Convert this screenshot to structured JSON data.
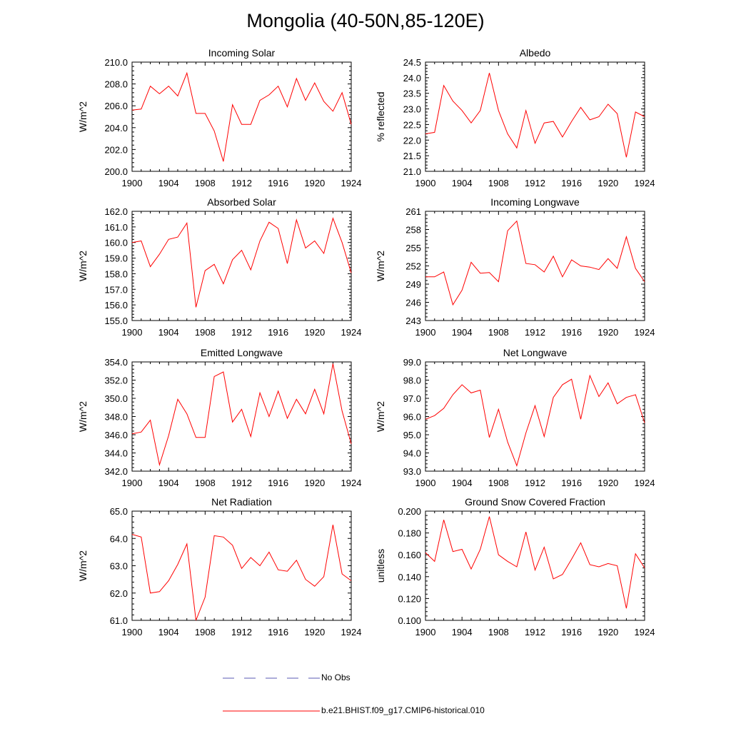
{
  "figure": {
    "title": "Mongolia (40-50N,85-120E)"
  },
  "legend": {
    "items": [
      {
        "label": "No Obs",
        "style": "dashed",
        "color": "#5a5ab4"
      },
      {
        "label": "b.e21.BHIST.f09_g17.CMIP6-historical.010",
        "style": "solid",
        "color": "#ff0000"
      }
    ]
  },
  "chart_data": [
    {
      "type": "line",
      "title": "Incoming Solar",
      "xlabel": "",
      "ylabel": "W/m^2",
      "xlim": [
        1900,
        1924
      ],
      "ylim": [
        200,
        210
      ],
      "xticks": [
        "1900",
        "1904",
        "1908",
        "1912",
        "1916",
        "1920",
        "1924"
      ],
      "yticks": [
        "200.0",
        "202.0",
        "204.0",
        "206.0",
        "208.0",
        "210.0"
      ],
      "line_color": "#ff0000",
      "series": [
        {
          "x": [
            1900,
            1901,
            1902,
            1903,
            1904,
            1905,
            1906,
            1907,
            1908,
            1909,
            1910,
            1911,
            1912,
            1913,
            1914,
            1915,
            1916,
            1917,
            1918,
            1919,
            1920,
            1921,
            1922,
            1923,
            1924
          ],
          "values": [
            205.6,
            205.7,
            207.8,
            207.1,
            207.8,
            206.9,
            209.0,
            205.3,
            205.3,
            203.7,
            200.9,
            206.1,
            204.3,
            204.3,
            206.5,
            207.0,
            207.8,
            205.9,
            208.5,
            206.5,
            208.1,
            206.4,
            205.5,
            207.2,
            204.3
          ]
        }
      ]
    },
    {
      "type": "line",
      "title": "Albedo",
      "xlabel": "",
      "ylabel": "% reflected",
      "xlim": [
        1900,
        1924
      ],
      "ylim": [
        21,
        24.5
      ],
      "xticks": [
        "1900",
        "1904",
        "1908",
        "1912",
        "1916",
        "1920",
        "1924"
      ],
      "yticks": [
        "21.0",
        "21.5",
        "22.0",
        "22.5",
        "23.0",
        "23.5",
        "24.0",
        "24.5"
      ],
      "line_color": "#ff0000",
      "series": [
        {
          "x": [
            1900,
            1901,
            1902,
            1903,
            1904,
            1905,
            1906,
            1907,
            1908,
            1909,
            1910,
            1911,
            1912,
            1913,
            1914,
            1915,
            1916,
            1917,
            1918,
            1919,
            1920,
            1921,
            1922,
            1923,
            1924
          ],
          "values": [
            22.2,
            22.25,
            23.75,
            23.25,
            22.95,
            22.55,
            22.95,
            24.15,
            22.95,
            22.2,
            21.75,
            22.95,
            21.9,
            22.55,
            22.6,
            22.1,
            22.6,
            23.05,
            22.65,
            22.75,
            23.15,
            22.85,
            21.45,
            22.9,
            22.75
          ]
        }
      ]
    },
    {
      "type": "line",
      "title": "Absorbed Solar",
      "xlabel": "",
      "ylabel": "W/m^2",
      "xlim": [
        1900,
        1924
      ],
      "ylim": [
        155,
        162
      ],
      "xticks": [
        "1900",
        "1904",
        "1908",
        "1912",
        "1916",
        "1920",
        "1924"
      ],
      "yticks": [
        "155.0",
        "156.0",
        "157.0",
        "158.0",
        "159.0",
        "160.0",
        "161.0",
        "162.0"
      ],
      "line_color": "#ff0000",
      "series": [
        {
          "x": [
            1900,
            1901,
            1902,
            1903,
            1904,
            1905,
            1906,
            1907,
            1908,
            1909,
            1910,
            1911,
            1912,
            1913,
            1914,
            1915,
            1916,
            1917,
            1918,
            1919,
            1920,
            1921,
            1922,
            1923,
            1924
          ],
          "values": [
            160.0,
            160.1,
            158.45,
            159.25,
            160.2,
            160.35,
            161.25,
            155.85,
            158.2,
            158.6,
            157.35,
            158.9,
            159.5,
            158.25,
            160.1,
            161.3,
            160.9,
            158.65,
            161.45,
            159.65,
            160.1,
            159.3,
            161.55,
            160.0,
            158.05
          ]
        }
      ]
    },
    {
      "type": "line",
      "title": "Incoming Longwave",
      "xlabel": "",
      "ylabel": "W/m^2",
      "xlim": [
        1900,
        1924
      ],
      "ylim": [
        243,
        261
      ],
      "xticks": [
        "1900",
        "1904",
        "1908",
        "1912",
        "1916",
        "1920",
        "1924"
      ],
      "yticks": [
        "243",
        "246",
        "249",
        "252",
        "255",
        "258",
        "261"
      ],
      "line_color": "#ff0000",
      "series": [
        {
          "x": [
            1900,
            1901,
            1902,
            1903,
            1904,
            1905,
            1906,
            1907,
            1908,
            1909,
            1910,
            1911,
            1912,
            1913,
            1914,
            1915,
            1916,
            1917,
            1918,
            1919,
            1920,
            1921,
            1922,
            1923,
            1924
          ],
          "values": [
            250.2,
            250.2,
            251.0,
            245.6,
            248.0,
            252.6,
            250.8,
            250.9,
            249.4,
            257.8,
            259.4,
            252.4,
            252.2,
            251.0,
            253.6,
            250.2,
            253.0,
            252.0,
            251.8,
            251.4,
            253.2,
            251.6,
            256.8,
            251.6,
            249.4
          ]
        }
      ]
    },
    {
      "type": "line",
      "title": "Emitted Longwave",
      "xlabel": "",
      "ylabel": "W/m^2",
      "xlim": [
        1900,
        1924
      ],
      "ylim": [
        342,
        354
      ],
      "xticks": [
        "1900",
        "1904",
        "1908",
        "1912",
        "1916",
        "1920",
        "1924"
      ],
      "yticks": [
        "342.0",
        "344.0",
        "346.0",
        "348.0",
        "350.0",
        "352.0",
        "354.0"
      ],
      "line_color": "#ff0000",
      "series": [
        {
          "x": [
            1900,
            1901,
            1902,
            1903,
            1904,
            1905,
            1906,
            1907,
            1908,
            1909,
            1910,
            1911,
            1912,
            1913,
            1914,
            1915,
            1916,
            1917,
            1918,
            1919,
            1920,
            1921,
            1922,
            1923,
            1924
          ],
          "values": [
            346.1,
            346.3,
            347.6,
            342.7,
            345.9,
            349.9,
            348.3,
            345.7,
            345.7,
            352.4,
            352.9,
            347.4,
            348.8,
            345.8,
            350.6,
            348.0,
            350.8,
            347.8,
            349.9,
            348.3,
            351.0,
            348.3,
            353.8,
            348.6,
            345.0
          ]
        }
      ]
    },
    {
      "type": "line",
      "title": "Net Longwave",
      "xlabel": "",
      "ylabel": "W/m^2",
      "xlim": [
        1900,
        1924
      ],
      "ylim": [
        93,
        99
      ],
      "xticks": [
        "1900",
        "1904",
        "1908",
        "1912",
        "1916",
        "1920",
        "1924"
      ],
      "yticks": [
        "93.0",
        "94.0",
        "95.0",
        "96.0",
        "97.0",
        "98.0",
        "99.0"
      ],
      "line_color": "#ff0000",
      "series": [
        {
          "x": [
            1900,
            1901,
            1902,
            1903,
            1904,
            1905,
            1906,
            1907,
            1908,
            1909,
            1910,
            1911,
            1912,
            1913,
            1914,
            1915,
            1916,
            1917,
            1918,
            1919,
            1920,
            1921,
            1922,
            1923,
            1924
          ],
          "values": [
            95.85,
            96.05,
            96.45,
            97.2,
            97.75,
            97.3,
            97.45,
            94.85,
            96.4,
            94.6,
            93.3,
            95.1,
            96.6,
            94.9,
            97.05,
            97.75,
            98.05,
            95.85,
            98.25,
            97.1,
            97.85,
            96.7,
            97.05,
            97.2,
            95.65
          ]
        }
      ]
    },
    {
      "type": "line",
      "title": "Net Radiation",
      "xlabel": "",
      "ylabel": "W/m^2",
      "xlim": [
        1900,
        1924
      ],
      "ylim": [
        61,
        65
      ],
      "xticks": [
        "1900",
        "1904",
        "1908",
        "1912",
        "1916",
        "1920",
        "1924"
      ],
      "yticks": [
        "61.0",
        "62.0",
        "63.0",
        "64.0",
        "65.0"
      ],
      "line_color": "#ff0000",
      "series": [
        {
          "x": [
            1900,
            1901,
            1902,
            1903,
            1904,
            1905,
            1906,
            1907,
            1908,
            1909,
            1910,
            1911,
            1912,
            1913,
            1914,
            1915,
            1916,
            1917,
            1918,
            1919,
            1920,
            1921,
            1922,
            1923,
            1924
          ],
          "values": [
            64.15,
            64.05,
            62.0,
            62.05,
            62.45,
            63.05,
            63.8,
            61.0,
            61.85,
            64.1,
            64.05,
            63.75,
            62.9,
            63.3,
            63.0,
            63.5,
            62.85,
            62.8,
            63.2,
            62.5,
            62.25,
            62.6,
            64.5,
            62.7,
            62.45
          ]
        }
      ]
    },
    {
      "type": "line",
      "title": "Ground Snow Covered Fraction",
      "xlabel": "",
      "ylabel": "unitless",
      "xlim": [
        1900,
        1924
      ],
      "ylim": [
        0.1,
        0.2
      ],
      "xticks": [
        "1900",
        "1904",
        "1908",
        "1912",
        "1916",
        "1920",
        "1924"
      ],
      "yticks": [
        "0.100",
        "0.120",
        "0.140",
        "0.160",
        "0.180",
        "0.200"
      ],
      "line_color": "#ff0000",
      "series": [
        {
          "x": [
            1900,
            1901,
            1902,
            1903,
            1904,
            1905,
            1906,
            1907,
            1908,
            1909,
            1910,
            1911,
            1912,
            1913,
            1914,
            1915,
            1916,
            1917,
            1918,
            1919,
            1920,
            1921,
            1922,
            1923,
            1924
          ],
          "values": [
            0.162,
            0.154,
            0.192,
            0.163,
            0.165,
            0.147,
            0.165,
            0.195,
            0.16,
            0.154,
            0.149,
            0.181,
            0.146,
            0.167,
            0.138,
            0.142,
            0.156,
            0.171,
            0.151,
            0.149,
            0.152,
            0.15,
            0.111,
            0.161,
            0.148
          ]
        }
      ]
    }
  ]
}
